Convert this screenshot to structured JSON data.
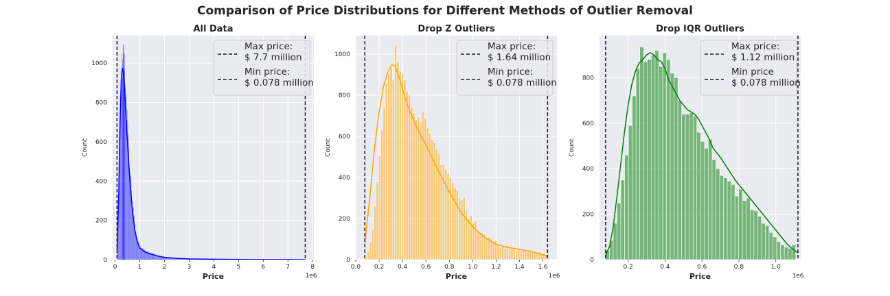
{
  "figure_title": "Comparison of Price Distributions for Different Methods of Outlier Removal",
  "colors": {
    "background": "#eaeaf2",
    "grid": "#ffffff",
    "text": "#262626",
    "vline": "#1a1a1a"
  },
  "chart_data": [
    {
      "type": "histogram",
      "title": "All Data",
      "xlabel": "Price",
      "ylabel": "Count",
      "offset_label": "1e6",
      "color": "#0000ff",
      "xlim": [
        -0.1,
        8.05
      ],
      "ylim": [
        0,
        1140
      ],
      "xticks": [
        0,
        1,
        2,
        3,
        4,
        5,
        6,
        7,
        8
      ],
      "xtick_labels": [
        "0",
        "1",
        "2",
        "3",
        "4",
        "5",
        "6",
        "7",
        "8"
      ],
      "yticks": [
        0,
        200,
        400,
        600,
        800,
        1000
      ],
      "ytick_labels": [
        "0",
        "200",
        "400",
        "600",
        "800",
        "1000"
      ],
      "grid": true,
      "vlines": [
        7.7,
        0.078
      ],
      "legend": {
        "position": "upper right",
        "entries": [
          {
            "label": "Max price:\n$ 7.7 million"
          },
          {
            "label": "Min price:\n$ 0.078 million"
          }
        ]
      },
      "kde": {
        "x": [
          0.08,
          0.15,
          0.2,
          0.25,
          0.28,
          0.31,
          0.34,
          0.38,
          0.42,
          0.46,
          0.5,
          0.55,
          0.6,
          0.7,
          0.8,
          0.9,
          1.0,
          1.2,
          1.4,
          1.7,
          2.0,
          2.5,
          3.0,
          4.0,
          5.0,
          6.0,
          7.0,
          7.7
        ],
        "y": [
          50,
          350,
          700,
          920,
          960,
          975,
          950,
          880,
          780,
          680,
          600,
          500,
          400,
          250,
          150,
          90,
          60,
          40,
          30,
          20,
          12,
          7,
          4,
          2,
          1,
          0.5,
          0.3,
          0
        ]
      },
      "hist_profile": {
        "x": [
          0.08,
          0.15,
          0.2,
          0.25,
          0.3,
          0.35,
          0.4,
          0.45,
          0.5,
          0.55,
          0.6,
          0.7,
          0.8,
          0.9,
          1.0,
          1.2,
          1.4,
          1.7,
          2.0,
          2.5,
          3.0,
          4.0,
          5.0,
          6.0,
          7.0,
          7.7
        ],
        "y": [
          40,
          380,
          760,
          950,
          1000,
          960,
          900,
          780,
          680,
          560,
          450,
          300,
          180,
          110,
          70,
          45,
          35,
          22,
          14,
          8,
          5,
          2,
          1,
          0.5,
          0.3,
          0
        ]
      },
      "hist_peaks": [
        {
          "x": 0.32,
          "y": 1095
        },
        {
          "x": 0.36,
          "y": 1050
        },
        {
          "x": 0.3,
          "y": 1020
        }
      ]
    },
    {
      "type": "histogram",
      "title": "Drop Z Outliers",
      "xlabel": "Price",
      "ylabel": "Count",
      "offset_label": "1e6",
      "color": "#ffa500",
      "xlim": [
        0.0,
        1.72
      ],
      "ylim": [
        0,
        1090
      ],
      "xticks": [
        0.0,
        0.2,
        0.4,
        0.6,
        0.8,
        1.0,
        1.2,
        1.4,
        1.6
      ],
      "xtick_labels": [
        "0.0",
        "0.2",
        "0.4",
        "0.6",
        "0.8",
        "1.0",
        "1.2",
        "1.4",
        "1.6"
      ],
      "yticks": [
        0,
        200,
        400,
        600,
        800,
        1000
      ],
      "ytick_labels": [
        "0",
        "200",
        "400",
        "600",
        "800",
        "1000"
      ],
      "grid": true,
      "vlines": [
        1.64,
        0.078
      ],
      "legend": {
        "position": "upper right",
        "entries": [
          {
            "label": "Max price:\n$ 1.64 million"
          },
          {
            "label": "Min price:\n$ 0.078 million"
          }
        ]
      },
      "bins": {
        "start": 0.078,
        "width": 0.0195,
        "count": 80
      },
      "bin_values": [
        12,
        40,
        85,
        150,
        260,
        380,
        505,
        630,
        740,
        860,
        905,
        935,
        880,
        1045,
        960,
        918,
        903,
        875,
        820,
        801,
        740,
        714,
        681,
        695,
        670,
        720,
        690,
        640,
        616,
        585,
        570,
        540,
        517,
        461,
        467,
        440,
        421,
        401,
        376,
        351,
        339,
        300,
        290,
        305,
        240,
        200,
        216,
        178,
        190,
        142,
        130,
        130,
        122,
        106,
        111,
        104,
        91,
        92,
        70,
        60,
        70,
        55,
        75,
        60,
        55,
        60,
        45,
        55,
        45,
        48,
        45,
        40,
        42,
        38,
        40,
        35,
        38,
        30,
        32,
        25
      ],
      "kde": {
        "x": [
          0.078,
          0.12,
          0.16,
          0.2,
          0.24,
          0.28,
          0.31,
          0.34,
          0.37,
          0.4,
          0.45,
          0.5,
          0.55,
          0.6,
          0.7,
          0.8,
          0.9,
          1.0,
          1.1,
          1.2,
          1.3,
          1.4,
          1.5,
          1.6,
          1.64
        ],
        "y": [
          80,
          300,
          540,
          720,
          850,
          920,
          950,
          940,
          890,
          830,
          740,
          670,
          610,
          560,
          440,
          330,
          230,
          160,
          110,
          75,
          60,
          50,
          40,
          25,
          15
        ]
      }
    },
    {
      "type": "histogram",
      "title": "Drop IQR Outliers",
      "xlabel": "Price",
      "ylabel": "Count",
      "offset_label": "1e6",
      "color": "#008000",
      "xlim": [
        0.045,
        1.135
      ],
      "ylim": [
        0,
        985
      ],
      "xticks": [
        0.2,
        0.4,
        0.6,
        0.8,
        1.0
      ],
      "xtick_labels": [
        "0.2",
        "0.4",
        "0.6",
        "0.8",
        "1.0"
      ],
      "yticks": [
        0,
        200,
        400,
        600,
        800
      ],
      "ytick_labels": [
        "0",
        "200",
        "400",
        "600",
        "800"
      ],
      "grid": true,
      "vlines": [
        1.12,
        0.078
      ],
      "legend": {
        "position": "upper right",
        "entries": [
          {
            "label": "Max price:\n$ 1.12 million"
          },
          {
            "label": "Min price\n$ 0.078 million"
          }
        ]
      },
      "bins": {
        "start": 0.078,
        "width": 0.0206,
        "count": 50
      },
      "bin_values": [
        40,
        85,
        160,
        250,
        350,
        460,
        590,
        720,
        840,
        935,
        870,
        880,
        900,
        920,
        850,
        910,
        880,
        820,
        800,
        700,
        640,
        640,
        645,
        630,
        560,
        520,
        490,
        530,
        440,
        400,
        370,
        360,
        345,
        330,
        280,
        310,
        260,
        270,
        220,
        215,
        190,
        160,
        150,
        120,
        100,
        80,
        65,
        55,
        50,
        65
      ],
      "kde": {
        "x": [
          0.078,
          0.1,
          0.12,
          0.14,
          0.16,
          0.18,
          0.2,
          0.22,
          0.24,
          0.26,
          0.28,
          0.3,
          0.32,
          0.34,
          0.36,
          0.38,
          0.4,
          0.42,
          0.44,
          0.46,
          0.48,
          0.5,
          0.52,
          0.54,
          0.56,
          0.58,
          0.6,
          0.62,
          0.64,
          0.66,
          0.7,
          0.74,
          0.78,
          0.82,
          0.86,
          0.9,
          0.94,
          0.98,
          1.02,
          1.06,
          1.1,
          1.12
        ],
        "y": [
          20,
          60,
          150,
          280,
          420,
          560,
          680,
          770,
          830,
          865,
          880,
          900,
          910,
          900,
          880,
          870,
          840,
          790,
          760,
          730,
          700,
          680,
          660,
          650,
          640,
          620,
          590,
          560,
          530,
          490,
          450,
          400,
          350,
          310,
          270,
          230,
          190,
          150,
          110,
          70,
          40,
          30
        ]
      }
    }
  ]
}
